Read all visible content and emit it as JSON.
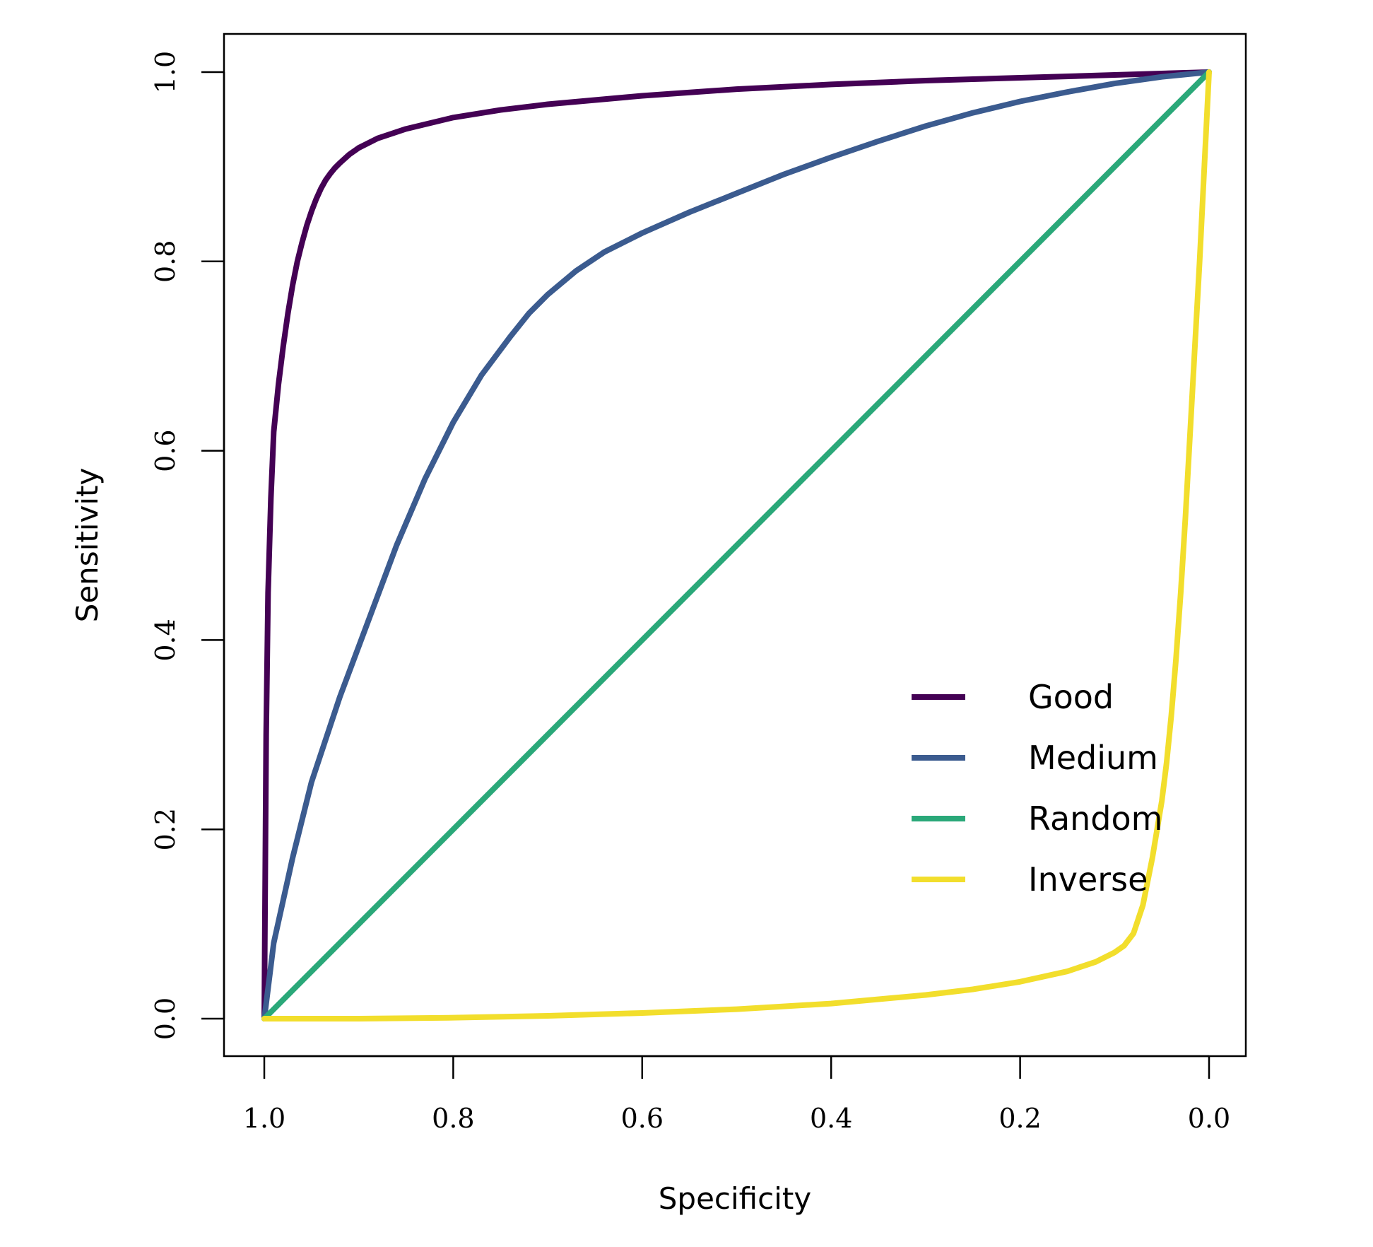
{
  "chart_data": {
    "type": "line",
    "xlabel": "Specificity",
    "ylabel": "Sensitivity",
    "xlim": [
      1.0,
      0.0
    ],
    "ylim": [
      0.0,
      1.0
    ],
    "x_reversed": true,
    "x_ticks": [
      "1.0",
      "0.8",
      "0.6",
      "0.4",
      "0.2",
      "0.0"
    ],
    "y_ticks": [
      "0.0",
      "0.2",
      "0.4",
      "0.6",
      "0.8",
      "1.0"
    ],
    "grid": false,
    "legend_position": "bottom-right",
    "series": [
      {
        "name": "Good",
        "color": "#440154",
        "x": [
          1.0,
          0.999,
          0.998,
          0.996,
          0.993,
          0.99,
          0.985,
          0.98,
          0.975,
          0.97,
          0.965,
          0.96,
          0.955,
          0.95,
          0.945,
          0.94,
          0.935,
          0.93,
          0.925,
          0.92,
          0.91,
          0.9,
          0.88,
          0.85,
          0.8,
          0.75,
          0.7,
          0.6,
          0.5,
          0.4,
          0.3,
          0.2,
          0.1,
          0.0
        ],
        "y": [
          0.0,
          0.15,
          0.3,
          0.45,
          0.55,
          0.62,
          0.67,
          0.71,
          0.745,
          0.775,
          0.8,
          0.82,
          0.838,
          0.853,
          0.866,
          0.877,
          0.886,
          0.893,
          0.899,
          0.904,
          0.913,
          0.92,
          0.93,
          0.94,
          0.952,
          0.96,
          0.966,
          0.975,
          0.982,
          0.987,
          0.991,
          0.994,
          0.997,
          1.0
        ]
      },
      {
        "name": "Medium",
        "color": "#3b5b8f",
        "x": [
          1.0,
          0.99,
          0.97,
          0.95,
          0.92,
          0.89,
          0.86,
          0.83,
          0.8,
          0.77,
          0.74,
          0.72,
          0.7,
          0.67,
          0.64,
          0.6,
          0.55,
          0.5,
          0.45,
          0.4,
          0.35,
          0.3,
          0.25,
          0.2,
          0.15,
          0.1,
          0.05,
          0.0
        ],
        "y": [
          0.0,
          0.08,
          0.17,
          0.25,
          0.34,
          0.42,
          0.5,
          0.57,
          0.63,
          0.68,
          0.72,
          0.745,
          0.765,
          0.79,
          0.81,
          0.83,
          0.852,
          0.872,
          0.892,
          0.91,
          0.927,
          0.943,
          0.957,
          0.969,
          0.979,
          0.988,
          0.995,
          1.0
        ]
      },
      {
        "name": "Random",
        "color": "#2aa879",
        "x": [
          1.0,
          0.0
        ],
        "y": [
          0.0,
          1.0
        ]
      },
      {
        "name": "Inverse",
        "color": "#f2de2c",
        "x": [
          1.0,
          0.9,
          0.8,
          0.7,
          0.6,
          0.5,
          0.4,
          0.3,
          0.25,
          0.2,
          0.15,
          0.12,
          0.1,
          0.09,
          0.08,
          0.07,
          0.06,
          0.05,
          0.045,
          0.04,
          0.035,
          0.03,
          0.025,
          0.02,
          0.015,
          0.01,
          0.007,
          0.004,
          0.002,
          0.0
        ],
        "y": [
          0.0,
          0.0,
          0.001,
          0.003,
          0.006,
          0.01,
          0.016,
          0.025,
          0.031,
          0.039,
          0.05,
          0.06,
          0.07,
          0.077,
          0.09,
          0.12,
          0.17,
          0.23,
          0.27,
          0.32,
          0.38,
          0.45,
          0.53,
          0.62,
          0.71,
          0.8,
          0.86,
          0.92,
          0.96,
          1.0
        ]
      }
    ]
  }
}
